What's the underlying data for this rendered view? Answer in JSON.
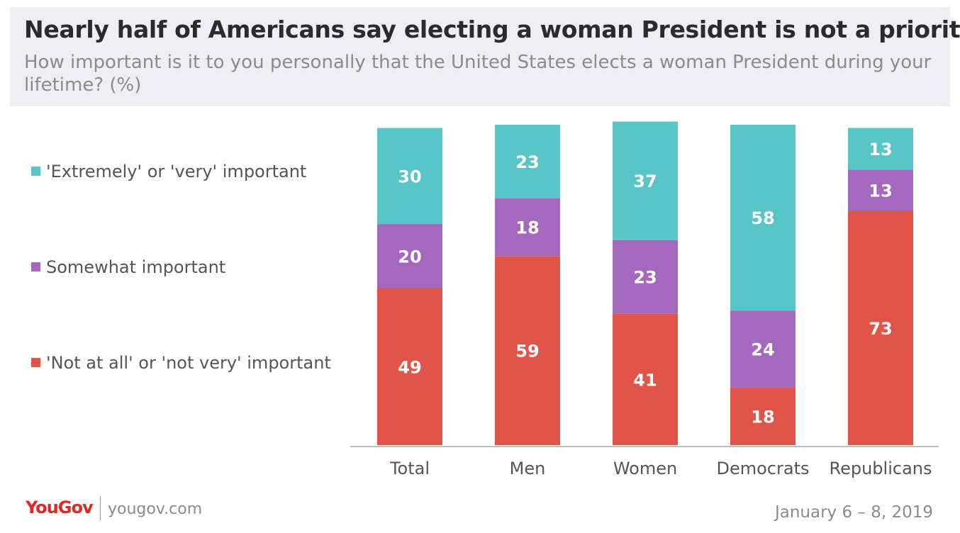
{
  "header": {
    "title": "Nearly half of Americans say electing a woman President is not a priority",
    "subtitle": "How important is it to you personally that the United States elects a woman President during your lifetime? (%)"
  },
  "legend": [
    {
      "label": "'Extremely' or 'very' important",
      "color": "#58c6c6"
    },
    {
      "label": "Somewhat important",
      "color": "#a469be"
    },
    {
      "label": "'Not at all' or 'not very' important",
      "color": "#e05548"
    }
  ],
  "chart_data": {
    "type": "bar",
    "stacked": true,
    "categories": [
      "Total",
      "Men",
      "Women",
      "Democrats",
      "Republicans"
    ],
    "series": [
      {
        "name": "'Not at all' or 'not very' important",
        "color": "#e05548",
        "values": [
          49,
          59,
          41,
          18,
          73
        ]
      },
      {
        "name": "Somewhat important",
        "color": "#a469be",
        "values": [
          20,
          18,
          23,
          24,
          13
        ]
      },
      {
        "name": "'Extremely' or 'very' important",
        "color": "#58c6c6",
        "values": [
          30,
          23,
          37,
          58,
          13
        ]
      }
    ],
    "ylim": [
      0,
      100
    ],
    "grid": false,
    "legend_position": "left"
  },
  "footer": {
    "brand": "YouGov",
    "url": "yougov.com",
    "date": "January 6 – 8, 2019"
  }
}
